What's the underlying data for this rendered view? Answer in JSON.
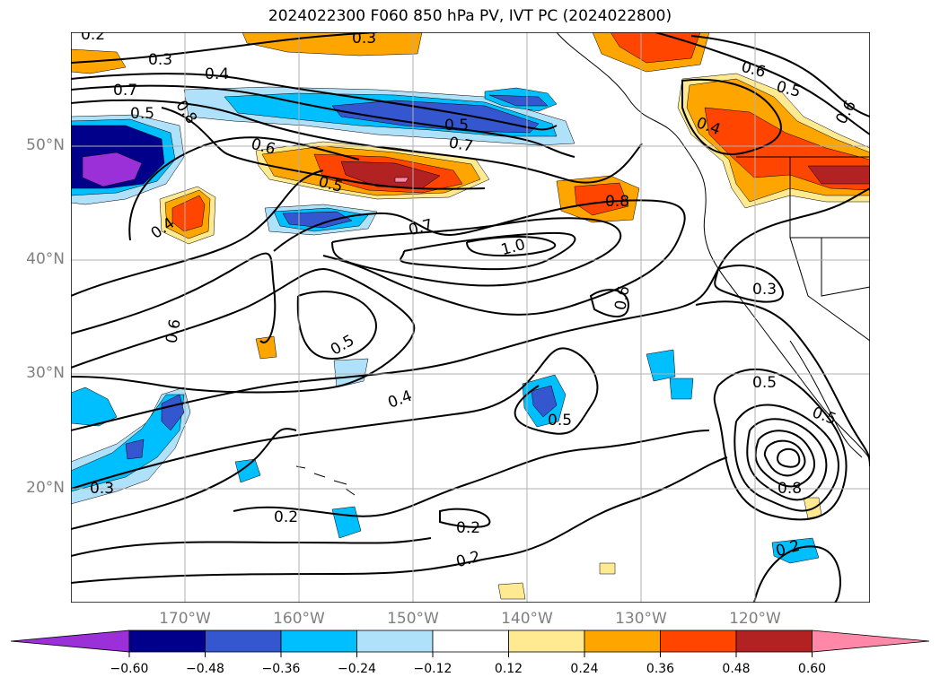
{
  "title": "2024022300 F060 850 hPa PV, IVT PC (2024022800)",
  "map": {
    "projection": "cylindrical",
    "lon_range": [
      -180,
      -110
    ],
    "lat_range": [
      10,
      60
    ],
    "lat_labels": [
      "50°N",
      "40°N",
      "30°N",
      "20°N"
    ],
    "lon_labels": [
      "170°W",
      "160°W",
      "150°W",
      "140°W",
      "130°W",
      "120°W"
    ],
    "axis_label_color": "#808080",
    "grid": true,
    "contour_labels": [
      "0.2",
      "0.3",
      "0.4",
      "0.7",
      "0.8",
      "0.5",
      "0.3",
      "0.6",
      "0.5",
      "0.6",
      "0.4",
      "0.5",
      "0.7",
      "0.6",
      "0.5",
      "0.4",
      "0.8",
      "0.7",
      "1.0",
      "0.3",
      "0.6",
      "0.6",
      "0.5",
      "0.4",
      "0.5",
      "0.5",
      "0.5",
      "0.3",
      "0.2",
      "0.2",
      "0.2",
      "0.8",
      "0.2"
    ]
  },
  "colorbar": {
    "ticks": [
      "−0.60",
      "−0.48",
      "−0.36",
      "−0.24",
      "−0.12",
      "0.12",
      "0.24",
      "0.36",
      "0.48",
      "0.60"
    ],
    "colors": [
      "#9b30d9",
      "#00008b",
      "#3456cf",
      "#00bfff",
      "#afe1fa",
      "#ffffff",
      "#ffe991",
      "#ffa500",
      "#ff4500",
      "#b22222",
      "#ff88a8"
    ],
    "extend": "both"
  }
}
